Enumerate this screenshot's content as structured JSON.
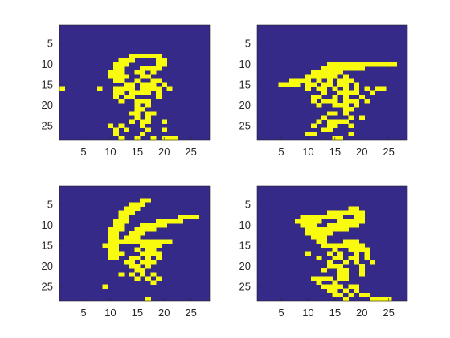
{
  "chart_data": [
    {
      "type": "heatmap",
      "xlim": [
        0.5,
        28.5
      ],
      "ylim": [
        0.5,
        28.5
      ],
      "y_reversed": true,
      "xticks": [
        5,
        10,
        15,
        20,
        25
      ],
      "yticks": [
        5,
        10,
        15,
        20,
        25
      ],
      "xtick_labels": [
        "5",
        "10",
        "15",
        "20",
        "25"
      ],
      "ytick_labels": [
        "5",
        "10",
        "15",
        "20",
        "25"
      ],
      "grid": false,
      "colormap": {
        "0": "#352a87",
        "1": "#f9fb0e"
      },
      "rows": [
        {
          "row": 8,
          "cols": [
            14,
            15,
            16,
            17,
            18,
            19
          ]
        },
        {
          "row": 9,
          "cols": [
            12,
            13,
            14,
            19,
            20
          ]
        },
        {
          "row": 10,
          "cols": [
            11,
            12,
            13,
            19,
            20
          ]
        },
        {
          "row": 11,
          "cols": [
            11,
            12,
            16,
            17,
            18,
            19
          ]
        },
        {
          "row": 12,
          "cols": [
            10,
            11,
            12,
            15,
            16,
            18
          ]
        },
        {
          "row": 13,
          "cols": [
            10,
            11,
            12,
            13,
            16,
            17
          ]
        },
        {
          "row": 14,
          "cols": [
            11,
            12,
            15,
            18,
            19
          ]
        },
        {
          "row": 15,
          "cols": [
            13,
            14,
            16,
            17,
            18,
            20
          ]
        },
        {
          "row": 16,
          "cols": [
            1,
            8,
            11,
            12,
            13,
            14,
            16,
            17,
            18,
            19,
            21
          ]
        },
        {
          "row": 17,
          "cols": [
            11,
            12,
            14,
            15,
            16,
            17,
            19
          ]
        },
        {
          "row": 18,
          "cols": [
            11,
            13,
            14,
            19
          ]
        },
        {
          "row": 19,
          "cols": [
            12,
            15,
            16,
            17
          ]
        },
        {
          "row": 20,
          "cols": [
            15,
            17
          ]
        },
        {
          "row": 21,
          "cols": [
            15,
            16
          ]
        },
        {
          "row": 22,
          "cols": [
            14,
            15,
            17,
            18
          ]
        },
        {
          "row": 23,
          "cols": [
            15,
            17
          ]
        },
        {
          "row": 24,
          "cols": [
            14,
            16,
            17,
            20
          ]
        },
        {
          "row": 25,
          "cols": [
            10,
            12,
            16
          ]
        },
        {
          "row": 26,
          "cols": [
            11,
            13,
            17,
            20
          ]
        },
        {
          "row": 27,
          "cols": [
            11,
            16
          ]
        },
        {
          "row": 28,
          "cols": [
            12,
            15,
            18,
            20,
            21,
            22
          ]
        }
      ]
    },
    {
      "type": "heatmap",
      "xlim": [
        0.5,
        28.5
      ],
      "ylim": [
        0.5,
        28.5
      ],
      "y_reversed": true,
      "xticks": [
        5,
        10,
        15,
        20,
        25
      ],
      "yticks": [
        5,
        10,
        15,
        20,
        25
      ],
      "xtick_labels": [
        "5",
        "10",
        "15",
        "20",
        "25"
      ],
      "ytick_labels": [
        "5",
        "10",
        "15",
        "20",
        "25"
      ],
      "grid": false,
      "colormap": {
        "0": "#352a87",
        "1": "#f9fb0e"
      },
      "rows": [
        {
          "row": 10,
          "cols": [
            14,
            15,
            16,
            17,
            18,
            19,
            20,
            21,
            22,
            23,
            24,
            25,
            26
          ]
        },
        {
          "row": 11,
          "cols": [
            13,
            14,
            15,
            16,
            17,
            18,
            19,
            20
          ]
        },
        {
          "row": 12,
          "cols": [
            11,
            12,
            13,
            14,
            15,
            16
          ]
        },
        {
          "row": 13,
          "cols": [
            10,
            11,
            12,
            13,
            14,
            15,
            17
          ]
        },
        {
          "row": 14,
          "cols": [
            7,
            8,
            9,
            10,
            12,
            14,
            16,
            17,
            18
          ]
        },
        {
          "row": 15,
          "cols": [
            5,
            6,
            7,
            8,
            10,
            11,
            13,
            14,
            16,
            17,
            19
          ]
        },
        {
          "row": 16,
          "cols": [
            10,
            12,
            13,
            15,
            17,
            19,
            21,
            23,
            24
          ]
        },
        {
          "row": 17,
          "cols": [
            13,
            16,
            17,
            18,
            19,
            22
          ]
        },
        {
          "row": 18,
          "cols": [
            11,
            12,
            15,
            17,
            20
          ]
        },
        {
          "row": 19,
          "cols": [
            11,
            13,
            14,
            15,
            17,
            18,
            19,
            21
          ]
        },
        {
          "row": 20,
          "cols": [
            12,
            15,
            16,
            17,
            19
          ]
        },
        {
          "row": 21,
          "cols": [
            17,
            18
          ]
        },
        {
          "row": 22,
          "cols": [
            14,
            15,
            17
          ]
        },
        {
          "row": 23,
          "cols": [
            13,
            18,
            20
          ]
        },
        {
          "row": 24,
          "cols": [
            12,
            14,
            15,
            16,
            17
          ]
        },
        {
          "row": 25,
          "cols": [
            11,
            14,
            15,
            18
          ]
        },
        {
          "row": 26,
          "cols": [
            13,
            14
          ]
        },
        {
          "row": 27,
          "cols": [
            10,
            11,
            18
          ]
        },
        {
          "row": 28,
          "cols": [
            15,
            16
          ]
        }
      ]
    },
    {
      "type": "heatmap",
      "xlim": [
        0.5,
        28.5
      ],
      "ylim": [
        0.5,
        28.5
      ],
      "y_reversed": true,
      "xticks": [
        5,
        10,
        15,
        20,
        25
      ],
      "yticks": [
        5,
        10,
        15,
        20,
        25
      ],
      "xtick_labels": [
        "5",
        "10",
        "15",
        "20",
        "25"
      ],
      "ytick_labels": [
        "5",
        "10",
        "15",
        "20",
        "25"
      ],
      "grid": false,
      "colormap": {
        "0": "#352a87",
        "1": "#f9fb0e"
      },
      "rows": [
        {
          "row": 4,
          "cols": [
            16,
            17
          ]
        },
        {
          "row": 5,
          "cols": [
            14,
            15,
            16
          ]
        },
        {
          "row": 6,
          "cols": [
            13,
            14,
            15
          ]
        },
        {
          "row": 7,
          "cols": [
            12,
            13,
            14
          ]
        },
        {
          "row": 8,
          "cols": [
            12,
            13,
            23,
            24,
            25,
            26
          ]
        },
        {
          "row": 9,
          "cols": [
            11,
            12,
            13,
            19,
            20,
            21,
            22,
            23
          ]
        },
        {
          "row": 10,
          "cols": [
            11,
            12,
            16,
            17,
            18,
            19,
            20
          ]
        },
        {
          "row": 11,
          "cols": [
            10,
            11,
            12,
            15,
            16,
            17,
            18
          ]
        },
        {
          "row": 12,
          "cols": [
            10,
            11,
            14,
            15,
            16
          ]
        },
        {
          "row": 13,
          "cols": [
            10,
            11,
            13,
            14,
            15
          ]
        },
        {
          "row": 14,
          "cols": [
            10,
            11,
            12,
            13,
            14,
            15,
            16,
            17,
            18,
            19,
            20,
            21
          ]
        },
        {
          "row": 15,
          "cols": [
            9,
            10,
            11,
            16,
            17,
            18,
            19
          ]
        },
        {
          "row": 16,
          "cols": [
            10,
            11,
            15,
            17,
            18
          ]
        },
        {
          "row": 17,
          "cols": [
            10,
            11,
            12,
            16,
            17,
            18,
            19
          ]
        },
        {
          "row": 18,
          "cols": [
            10,
            11,
            14,
            15,
            17,
            19
          ]
        },
        {
          "row": 19,
          "cols": [
            13,
            14,
            16,
            17,
            18
          ]
        },
        {
          "row": 20,
          "cols": [
            14,
            15,
            17
          ]
        },
        {
          "row": 21,
          "cols": [
            15,
            16
          ]
        },
        {
          "row": 22,
          "cols": [
            12,
            14,
            16,
            18
          ]
        },
        {
          "row": 23,
          "cols": [
            15,
            17,
            19
          ]
        },
        {
          "row": 24,
          "cols": [
            18
          ]
        },
        {
          "row": 25,
          "cols": [
            9
          ]
        },
        {
          "row": 28,
          "cols": [
            17
          ]
        }
      ]
    },
    {
      "type": "heatmap",
      "xlim": [
        0.5,
        28.5
      ],
      "ylim": [
        0.5,
        28.5
      ],
      "y_reversed": true,
      "xticks": [
        5,
        10,
        15,
        20,
        25
      ],
      "yticks": [
        5,
        10,
        15,
        20,
        25
      ],
      "xtick_labels": [
        "5",
        "10",
        "15",
        "20",
        "25"
      ],
      "ytick_labels": [
        "5",
        "10",
        "15",
        "20",
        "25"
      ],
      "grid": false,
      "colormap": {
        "0": "#352a87",
        "1": "#f9fb0e"
      },
      "rows": [
        {
          "row": 6,
          "cols": [
            18,
            19
          ]
        },
        {
          "row": 7,
          "cols": [
            14,
            15,
            16,
            17,
            18,
            19,
            20
          ]
        },
        {
          "row": 8,
          "cols": [
            9,
            10,
            11,
            12,
            13,
            14,
            15,
            16,
            19,
            20
          ]
        },
        {
          "row": 9,
          "cols": [
            8,
            9,
            10,
            11,
            12,
            16,
            17,
            18,
            19,
            20
          ]
        },
        {
          "row": 10,
          "cols": [
            9,
            10,
            11,
            14,
            15,
            16,
            17,
            18,
            19
          ]
        },
        {
          "row": 11,
          "cols": [
            10,
            11,
            12,
            13,
            14,
            15,
            16,
            17
          ]
        },
        {
          "row": 12,
          "cols": [
            10,
            11,
            12,
            13,
            14
          ]
        },
        {
          "row": 13,
          "cols": [
            11,
            12,
            13
          ]
        },
        {
          "row": 14,
          "cols": [
            12,
            13,
            17,
            18,
            19
          ]
        },
        {
          "row": 15,
          "cols": [
            13,
            14,
            15,
            16,
            17,
            18,
            19,
            20
          ]
        },
        {
          "row": 16,
          "cols": [
            15,
            18,
            19,
            20,
            21
          ]
        },
        {
          "row": 17,
          "cols": [
            10,
            14,
            16,
            19,
            21
          ]
        },
        {
          "row": 18,
          "cols": [
            12,
            15,
            16,
            18,
            19,
            21
          ]
        },
        {
          "row": 19,
          "cols": [
            14,
            17,
            19,
            22
          ]
        },
        {
          "row": 20,
          "cols": [
            14,
            15,
            16,
            20
          ]
        },
        {
          "row": 21,
          "cols": [
            13,
            16,
            17,
            20
          ]
        },
        {
          "row": 22,
          "cols": [
            16,
            17,
            20
          ]
        },
        {
          "row": 23,
          "cols": [
            11,
            12,
            13,
            14,
            16,
            17
          ]
        },
        {
          "row": 24,
          "cols": [
            12,
            15
          ]
        },
        {
          "row": 25,
          "cols": [
            13,
            14,
            15,
            16,
            18,
            19
          ]
        },
        {
          "row": 26,
          "cols": [
            14,
            15,
            17,
            19
          ]
        },
        {
          "row": 27,
          "cols": [
            15,
            16,
            18,
            20,
            21
          ]
        },
        {
          "row": 28,
          "cols": [
            17,
            22,
            23,
            24,
            25
          ]
        }
      ]
    }
  ]
}
